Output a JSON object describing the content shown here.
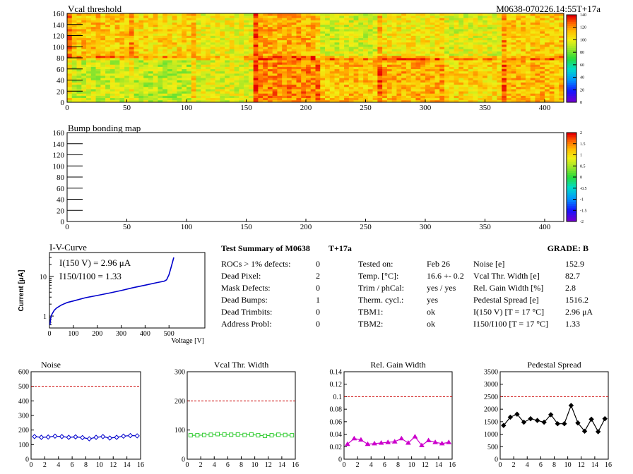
{
  "header": {
    "module": "M0638-070226.14:55T+17a"
  },
  "colors": {
    "noise": "#0000cc",
    "vcal": "#33cc33",
    "gain": "#cc00cc",
    "ped": "#000000",
    "ref": "#cc0000",
    "iv": "#0000cc"
  },
  "summary": {
    "title": "Test Summary of M0638",
    "temp_label": "T+17a",
    "grade": "GRADE:  B",
    "defects": [
      {
        "label": "ROCs > 1% defects:",
        "value": "0"
      },
      {
        "label": "Dead Pixel:",
        "value": "2"
      },
      {
        "label": "Mask Defects:",
        "value": "0"
      },
      {
        "label": "Dead Bumps:",
        "value": "1"
      },
      {
        "label": "Dead Trimbits:",
        "value": "0"
      },
      {
        "label": "Address Probl:",
        "value": "0"
      }
    ],
    "conditions": [
      {
        "label": "Tested on:",
        "value": "Feb 26"
      },
      {
        "label": "Temp. [°C]:",
        "value": "16.6 +- 0.2"
      },
      {
        "label": "Trim / phCal:",
        "value": "yes / yes"
      },
      {
        "label": "Therm. cycl.:",
        "value": "yes"
      },
      {
        "label": "TBM1:",
        "value": "ok"
      },
      {
        "label": "TBM2:",
        "value": "ok"
      }
    ],
    "results": [
      {
        "label": "Noise [e]",
        "value": "152.9"
      },
      {
        "label": "Vcal Thr. Width [e]",
        "value": "82.7"
      },
      {
        "label": "Rel. Gain Width [%]",
        "value": "2.8"
      },
      {
        "label": "Pedestal Spread [e]",
        "value": "1516.2"
      },
      {
        "label": "I(150 V) [T = 17 °C]",
        "value": "2.96 μA"
      },
      {
        "label": "I150/I100  [T = 17 °C]",
        "value": "1.33"
      }
    ]
  },
  "chart_data": [
    {
      "type": "heatmap",
      "title": "Vcal threshold",
      "xlim": [
        0,
        416
      ],
      "ylim": [
        0,
        160
      ],
      "xticks": [
        "0",
        "50",
        "100",
        "150",
        "200",
        "250",
        "300",
        "350",
        "400"
      ],
      "yticks": [
        "0",
        "20",
        "40",
        "60",
        "80",
        "100",
        "120",
        "140",
        "160"
      ],
      "colorbar": {
        "range": [
          0,
          140
        ],
        "ticks": [
          "0",
          "20",
          "40",
          "60",
          "80",
          "100",
          "120",
          "140"
        ]
      },
      "roc_mean_top": [
        112,
        108,
        101,
        116,
        96,
        104,
        98,
        110
      ],
      "roc_mean_bottom": [
        94,
        92,
        98,
        122,
        113,
        116,
        108,
        114
      ]
    },
    {
      "type": "heatmap",
      "title": "Bump bonding map",
      "xlim": [
        0,
        416
      ],
      "ylim": [
        0,
        160
      ],
      "xticks": [
        "0",
        "50",
        "100",
        "150",
        "200",
        "250",
        "300",
        "350",
        "400"
      ],
      "yticks": [
        "0",
        "20",
        "40",
        "60",
        "80",
        "100",
        "120",
        "140",
        "160"
      ],
      "colorbar": {
        "range": [
          -2,
          2
        ],
        "ticks": [
          "-2",
          "-1.5",
          "-1",
          "-0.5",
          "0",
          "0.5",
          "1",
          "1.5",
          "2"
        ]
      }
    },
    {
      "type": "line",
      "title": "I-V-Curve",
      "xlabel": "Voltage [V]",
      "ylabel": "Current [μA]",
      "log_y": true,
      "xlim": [
        0,
        650
      ],
      "ylim": [
        0.5,
        40
      ],
      "xticks": [
        "0",
        "100",
        "200",
        "300",
        "400",
        "500"
      ],
      "yticks": [
        "1",
        "10"
      ],
      "annotation1": "I(150 V) = 2.96 μA",
      "annotation2": "I150/I100 =  1.33",
      "x": [
        2,
        5,
        10,
        20,
        30,
        50,
        75,
        100,
        150,
        200,
        250,
        300,
        350,
        400,
        450,
        480,
        490,
        500,
        510,
        520
      ],
      "y": [
        0.6,
        0.9,
        1.1,
        1.4,
        1.6,
        1.9,
        2.2,
        2.4,
        2.9,
        3.3,
        3.8,
        4.4,
        5.2,
        6.0,
        7.0,
        7.6,
        8.2,
        11,
        18,
        30
      ]
    },
    {
      "type": "line",
      "title": "Noise",
      "xlim": [
        0,
        16
      ],
      "ylim": [
        0,
        600
      ],
      "xticks": [
        "0",
        "2",
        "4",
        "6",
        "8",
        "10",
        "12",
        "14",
        "16"
      ],
      "yticks": [
        "0",
        "100",
        "200",
        "300",
        "400",
        "500",
        "600"
      ],
      "reference": 500,
      "x": [
        0,
        1,
        2,
        3,
        4,
        5,
        6,
        7,
        8,
        9,
        10,
        11,
        12,
        13,
        14,
        15
      ],
      "y": [
        155,
        150,
        152,
        158,
        155,
        150,
        153,
        148,
        140,
        150,
        155,
        145,
        150,
        158,
        162,
        160
      ]
    },
    {
      "type": "line",
      "title": "Vcal Thr. Width",
      "xlim": [
        0,
        16
      ],
      "ylim": [
        0,
        300
      ],
      "xticks": [
        "0",
        "2",
        "4",
        "6",
        "8",
        "10",
        "12",
        "14",
        "16"
      ],
      "yticks": [
        "0",
        "100",
        "200",
        "300"
      ],
      "reference": 200,
      "x": [
        0,
        1,
        2,
        3,
        4,
        5,
        6,
        7,
        8,
        9,
        10,
        11,
        12,
        13,
        14,
        15
      ],
      "y": [
        82,
        82,
        83,
        84,
        86,
        85,
        84,
        85,
        83,
        85,
        82,
        80,
        82,
        84,
        83,
        82
      ]
    },
    {
      "type": "line",
      "title": "Rel. Gain Width",
      "xlim": [
        0,
        16
      ],
      "ylim": [
        0,
        0.14
      ],
      "xticks": [
        "0",
        "2",
        "4",
        "6",
        "8",
        "10",
        "12",
        "14",
        "16"
      ],
      "yticks": [
        "0",
        "0.02",
        "0.04",
        "0.06",
        "0.08",
        "0.1",
        "0.12",
        "0.14"
      ],
      "reference": 0.1,
      "x": [
        0,
        1,
        2,
        3,
        4,
        5,
        6,
        7,
        8,
        9,
        10,
        11,
        12,
        13,
        14,
        15
      ],
      "y": [
        0.024,
        0.033,
        0.031,
        0.024,
        0.025,
        0.026,
        0.027,
        0.028,
        0.033,
        0.026,
        0.036,
        0.022,
        0.03,
        0.027,
        0.025,
        0.027
      ]
    },
    {
      "type": "line",
      "title": "Pedestal Spread",
      "xlim": [
        0,
        16
      ],
      "ylim": [
        0,
        3500
      ],
      "xticks": [
        "0",
        "2",
        "4",
        "6",
        "8",
        "10",
        "12",
        "14",
        "16"
      ],
      "yticks": [
        "0",
        "500",
        "1000",
        "1500",
        "2000",
        "2500",
        "3000",
        "3500"
      ],
      "reference": 2500,
      "x": [
        0,
        1,
        2,
        3,
        4,
        5,
        6,
        7,
        8,
        9,
        10,
        11,
        12,
        13,
        14,
        15
      ],
      "y": [
        1350,
        1680,
        1800,
        1480,
        1620,
        1550,
        1480,
        1780,
        1420,
        1420,
        2150,
        1450,
        1120,
        1600,
        1100,
        1620
      ]
    }
  ]
}
